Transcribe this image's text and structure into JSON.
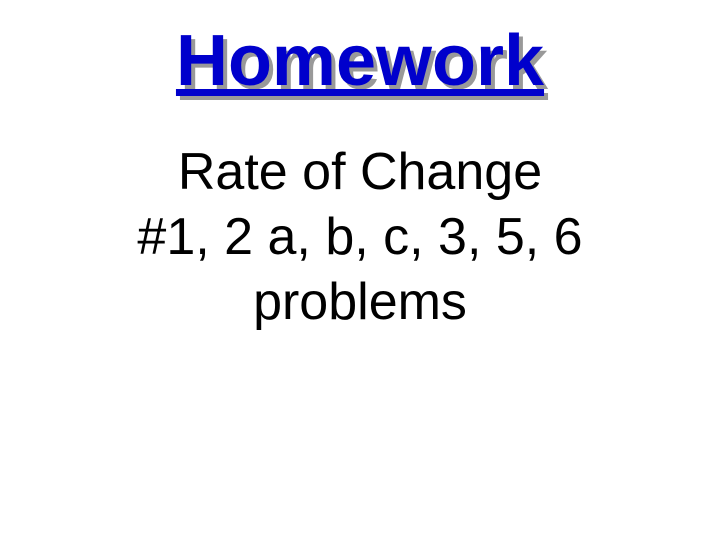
{
  "slide": {
    "title": "Homework",
    "line1": "Rate of Change",
    "line2": "#1, 2 a, b, c, 3, 5, 6",
    "line3": "problems",
    "title_color": "#0000cc",
    "title_shadow_color": "#999999",
    "title_fontsize": 72,
    "body_fontsize": 52,
    "body_color": "#000000",
    "background_color": "#ffffff"
  }
}
